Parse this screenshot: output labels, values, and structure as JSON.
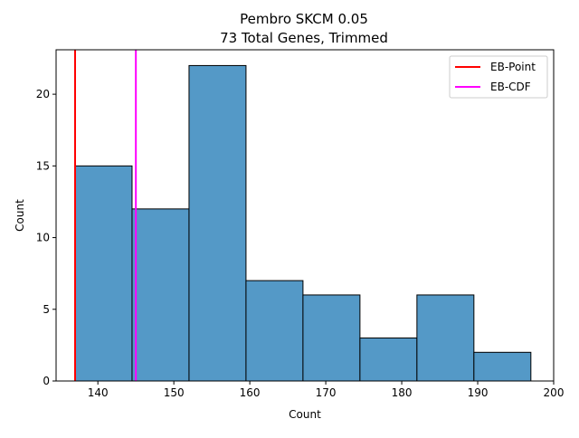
{
  "chart_data": {
    "type": "histogram",
    "title_line1": "Pembro SKCM 0.05",
    "title_line2": "73 Total Genes, Trimmed",
    "xlabel": "Count",
    "ylabel": "Count",
    "xlim": [
      134.5,
      200
    ],
    "ylim": [
      0,
      23.1
    ],
    "x_ticks": [
      140,
      150,
      160,
      170,
      180,
      190,
      200
    ],
    "y_ticks": [
      0,
      5,
      10,
      15,
      20
    ],
    "bin_edges": [
      137,
      144.5,
      152,
      159.5,
      167,
      174.5,
      182,
      189.5,
      197
    ],
    "counts": [
      15,
      12,
      22,
      7,
      6,
      3,
      6,
      2
    ],
    "bar_color": "#5499c7",
    "vlines": [
      {
        "name": "EB-Point",
        "x": 137,
        "color": "#ff0000"
      },
      {
        "name": "EB-CDF",
        "x": 145,
        "color": "#ff00ff"
      }
    ],
    "legend_position": "top-right",
    "grid": false
  }
}
